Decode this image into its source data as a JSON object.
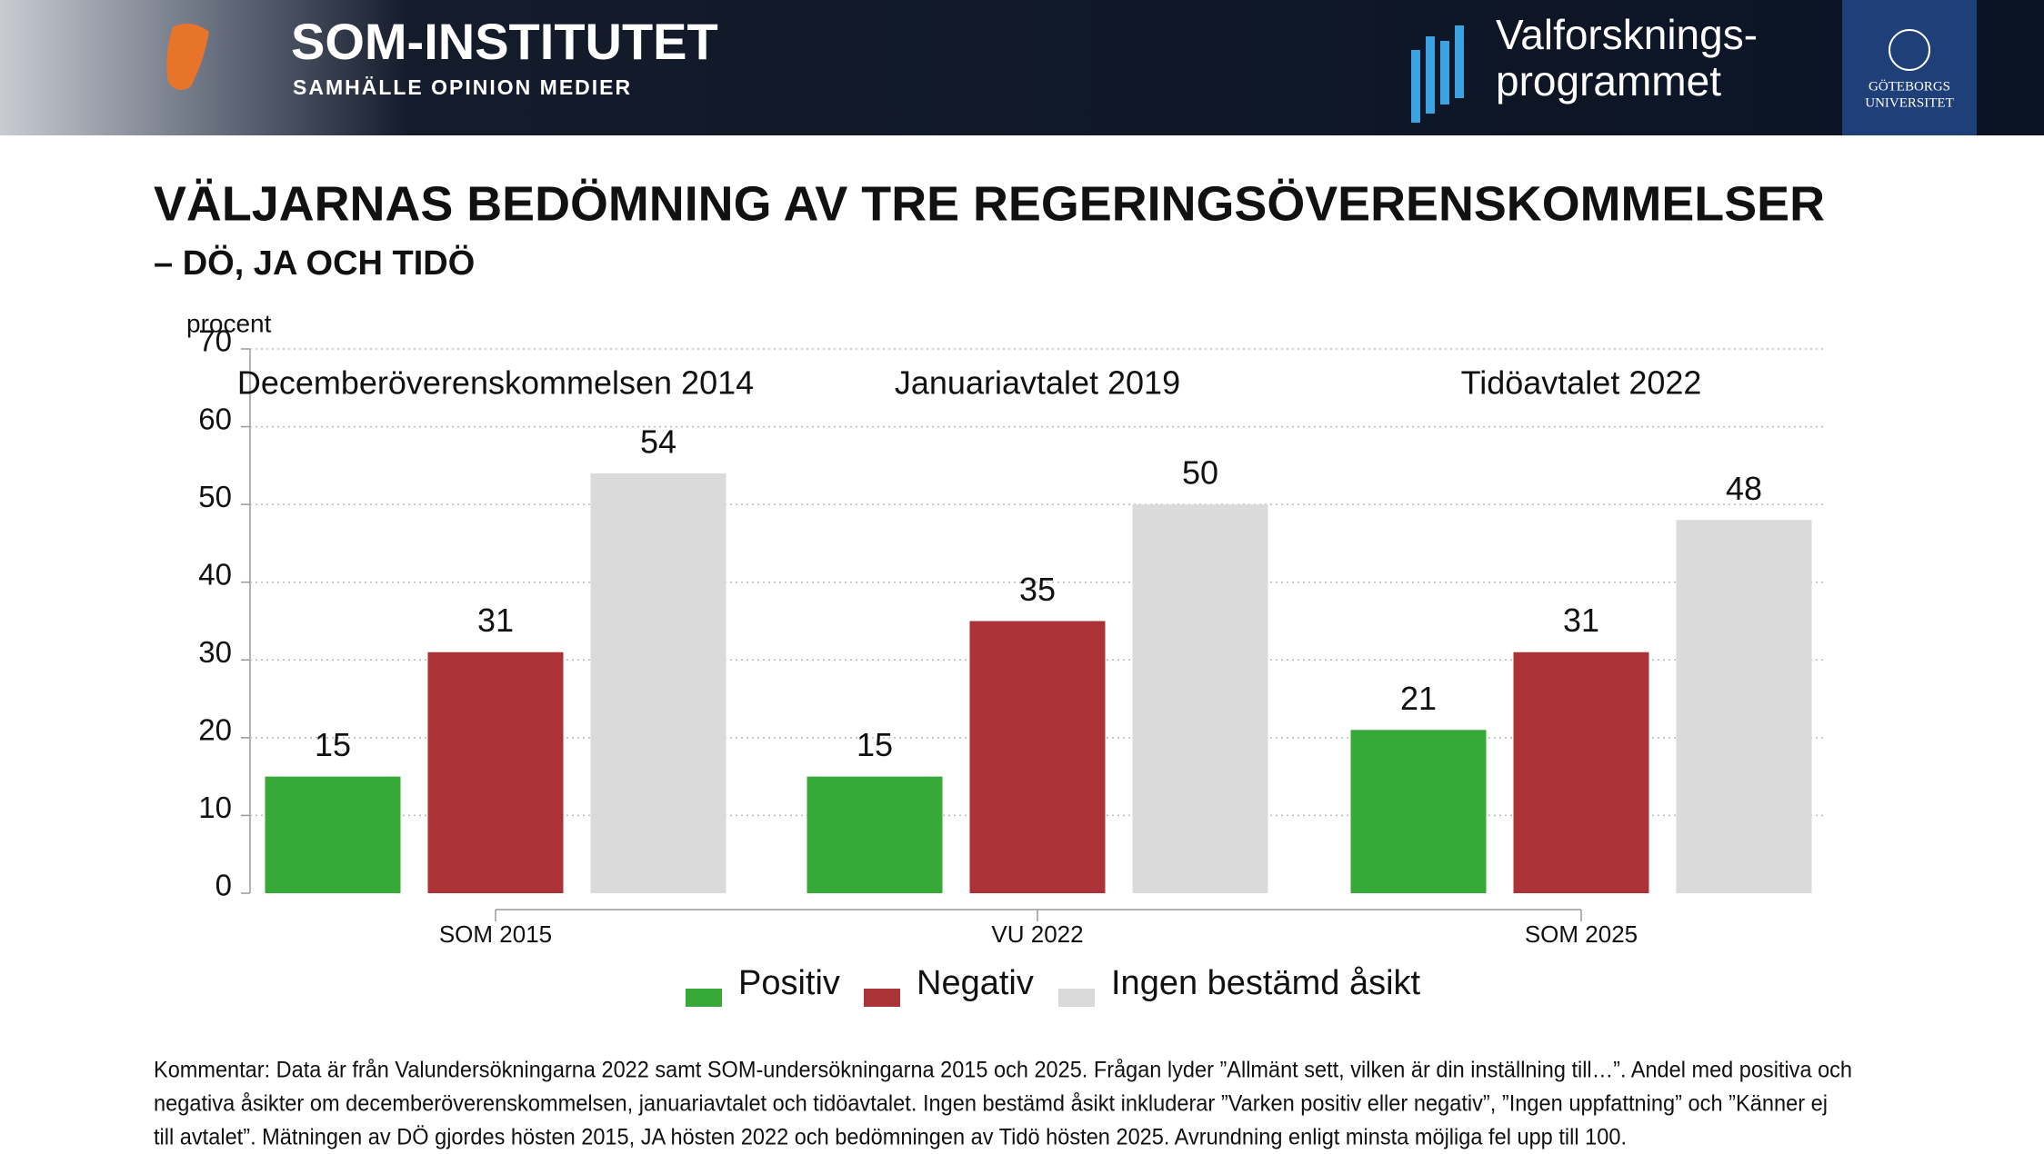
{
  "header": {
    "brand": "SOM-INSTITUTET",
    "brand_tagline": "SAMHÄLLE  OPINION  MEDIER",
    "program": [
      "Valforsknings-",
      "programmet"
    ],
    "university": [
      "GÖTEBORGS",
      "UNIVERSITET"
    ]
  },
  "chart_data": {
    "type": "bar",
    "title": "VÄLJARNAS BEDÖMNING AV TRE REGERINGSÖVERENSKOMMELSER",
    "subtitle": "– DÖ, JA OCH TIDÖ",
    "y_label": "procent",
    "categories": [
      "SOM 2015",
      "VU 2022",
      "SOM 2025"
    ],
    "group_labels": [
      "Decemberöverenskommelsen 2014",
      "Januariavtalet 2019",
      "Tidöavtalet 2022"
    ],
    "series": [
      {
        "name": "Positiv",
        "color": "#37a939",
        "values": [
          15,
          15,
          21
        ]
      },
      {
        "name": "Negativ",
        "color": "#ab3236",
        "values": [
          31,
          35,
          31
        ]
      },
      {
        "name": "Ingen bestämd åsikt",
        "color": "#dadada",
        "values": [
          54,
          50,
          48
        ]
      }
    ],
    "ylim": [
      0,
      70
    ],
    "yticks": [
      0,
      10,
      20,
      30,
      40,
      50,
      60,
      70
    ],
    "grid": true,
    "legend": "bottom",
    "note": [
      "Kommentar: Data är från Valundersökningarna 2022 samt SOM-undersökningarna 2015 och 2025. Frågan lyder ”Allmänt sett, vilken är din inställning till…”. Andel med positiva och",
      "negativa åsikter om decemberöverenskommelsen, januariavtalet och tidöavtalet. Ingen bestämd åsikt inkluderar ”Varken positiv eller negativ”, ”Ingen uppfattning” och ”Känner ej",
      "till avtalet”. Mätningen av DÖ gjordes hösten 2015, JA hösten 2022 och bedömningen av Tidö hösten 2025. Avrundning enligt minsta möjliga fel upp till 100."
    ]
  }
}
